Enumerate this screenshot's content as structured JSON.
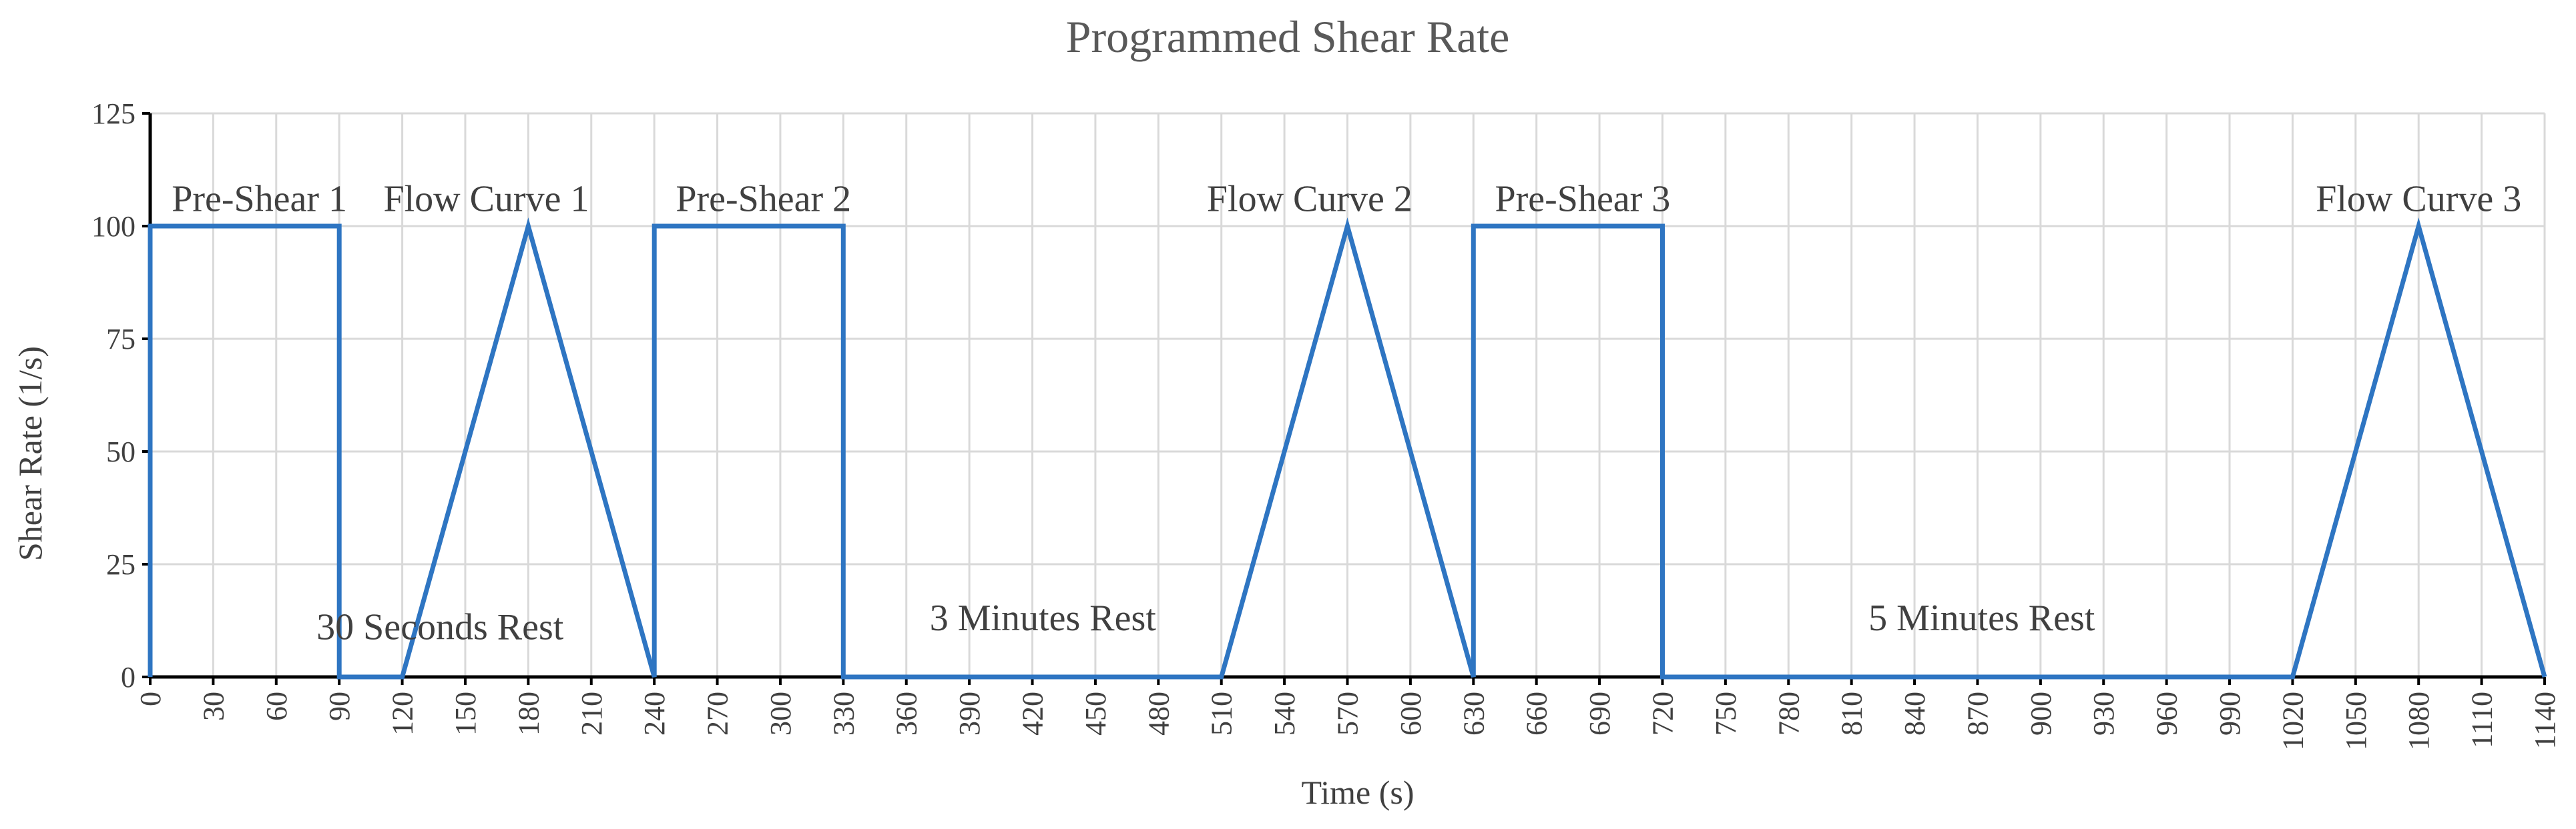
{
  "chart_data": {
    "type": "line",
    "title": "Programmed Shear Rate",
    "xlabel": "Time (s)",
    "ylabel": "Shear Rate (1/s)",
    "xlim": [
      0,
      1140
    ],
    "ylim": [
      0,
      125
    ],
    "x_ticks": [
      0,
      30,
      60,
      90,
      120,
      150,
      180,
      210,
      240,
      270,
      300,
      330,
      360,
      390,
      420,
      450,
      480,
      510,
      540,
      570,
      600,
      630,
      660,
      690,
      720,
      750,
      780,
      810,
      840,
      870,
      900,
      930,
      960,
      990,
      1020,
      1050,
      1080,
      1110,
      1140
    ],
    "y_ticks": [
      0,
      25,
      50,
      75,
      100,
      125
    ],
    "grid": true,
    "color": "#2e75c2",
    "series": [
      {
        "name": "Programmed Shear Rate",
        "x": [
          0,
          0,
          90,
          90,
          120,
          180,
          240,
          240,
          330,
          330,
          510,
          570,
          630,
          630,
          720,
          720,
          1020,
          1080,
          1140
        ],
        "y": [
          0,
          100,
          100,
          0,
          0,
          100,
          0,
          100,
          100,
          0,
          0,
          100,
          0,
          100,
          100,
          0,
          0,
          100,
          0
        ]
      }
    ],
    "annotations": [
      {
        "text": "Pre-Shear 1",
        "x": 52,
        "y": 106
      },
      {
        "text": "Flow Curve 1",
        "x": 160,
        "y": 106
      },
      {
        "text": "Pre-Shear 2",
        "x": 292,
        "y": 106
      },
      {
        "text": "Flow Curve 2",
        "x": 552,
        "y": 106
      },
      {
        "text": "Pre-Shear 3",
        "x": 682,
        "y": 106
      },
      {
        "text": "Flow Curve 3",
        "x": 1080,
        "y": 106
      },
      {
        "text": "30 Seconds Rest",
        "x": 138,
        "y": 11
      },
      {
        "text": "3 Minutes Rest",
        "x": 425,
        "y": 13
      },
      {
        "text": "5 Minutes Rest",
        "x": 872,
        "y": 13
      }
    ]
  }
}
